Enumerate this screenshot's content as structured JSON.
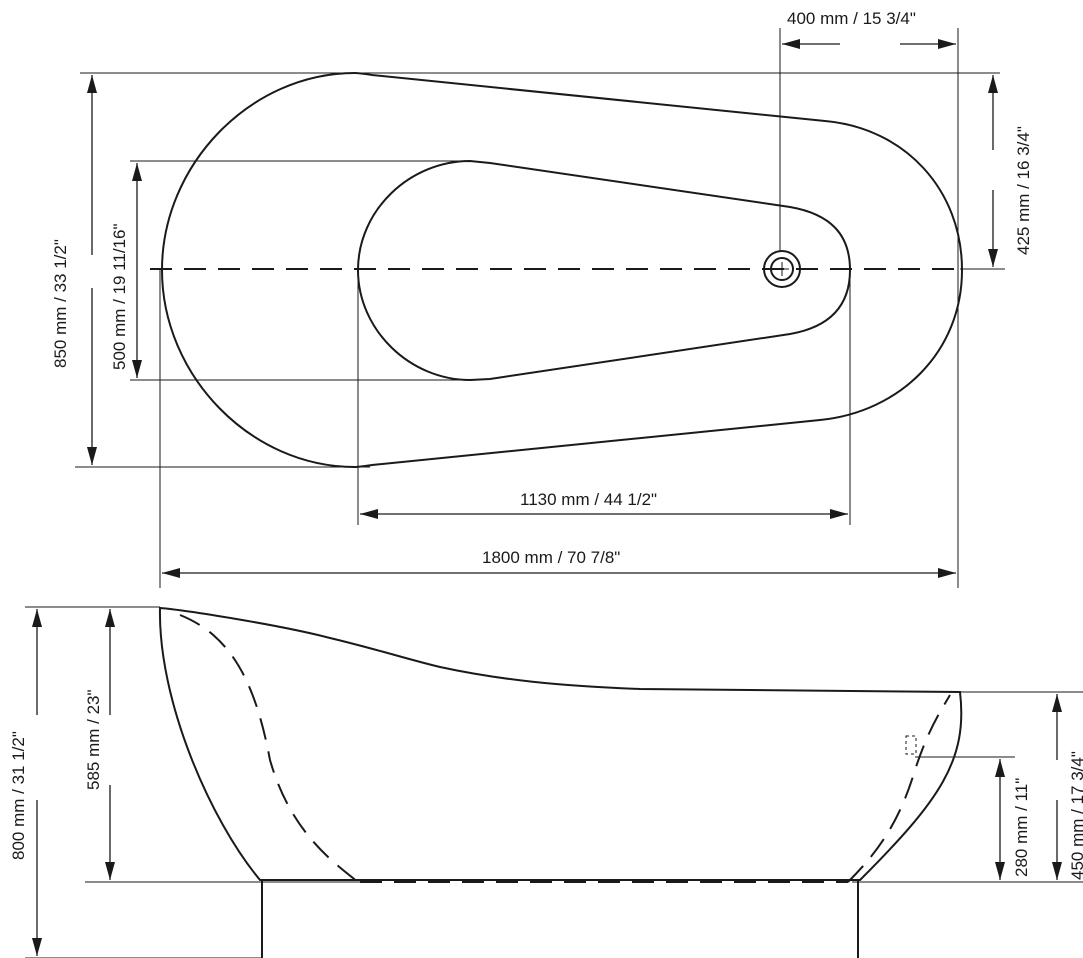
{
  "diagram": {
    "top_view": {
      "drain_offset_label": "400 mm / 15 3/4\"",
      "half_width_label": "425 mm / 16 3/4\"",
      "overall_width_label": "850 mm / 33 1/2\"",
      "inner_width_label": "500 mm / 19 11/16\"",
      "inner_length_label": "1130 mm / 44 1/2\"",
      "overall_length_label": "1800 mm / 70 7/8\""
    },
    "side_view": {
      "overall_height_label": "800 mm / 31 1/2\"",
      "inner_depth_label": "585 mm / 23\"",
      "overflow_height_label": "280 mm / 11\"",
      "foot_end_depth_label": "450 mm / 17 3/4\""
    }
  }
}
